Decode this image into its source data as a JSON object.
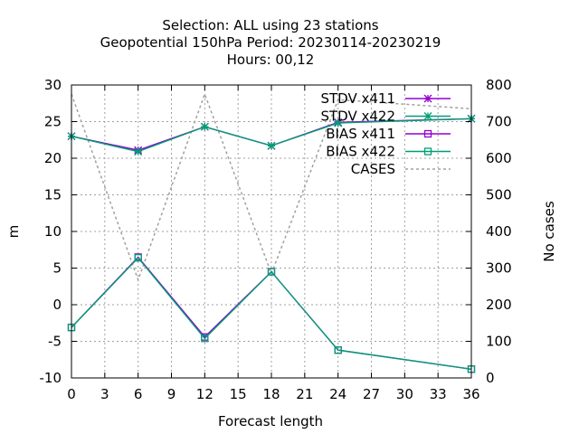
{
  "chart_data": {
    "type": "line",
    "title": [
      "Selection: ALL using    23 stations",
      "Geopotential 150hPa   Period: 20230114-20230219",
      "Hours:  00,12"
    ],
    "xlabel": "Forecast length",
    "ylabel": "m",
    "y2label": "No cases",
    "xlim": [
      0,
      36
    ],
    "ylim": [
      -10,
      30
    ],
    "y2lim": [
      0,
      800
    ],
    "xticks": [
      0,
      3,
      6,
      9,
      12,
      15,
      18,
      21,
      24,
      27,
      30,
      33,
      36
    ],
    "yticks": [
      -10,
      -5,
      0,
      5,
      10,
      15,
      20,
      25,
      30
    ],
    "y2ticks": [
      0,
      100,
      200,
      300,
      400,
      500,
      600,
      700,
      800
    ],
    "grid": true,
    "legend_position": "top-right",
    "series": [
      {
        "name": "STDV x411",
        "axis": "y",
        "color": "#9400d3",
        "marker": "star",
        "dash": false,
        "x": [
          0,
          6,
          12,
          18,
          24,
          36
        ],
        "values": [
          23.0,
          21.1,
          24.3,
          21.7,
          24.9,
          25.4
        ]
      },
      {
        "name": "STDV x422",
        "axis": "y",
        "color": "#009e73",
        "marker": "star",
        "dash": false,
        "x": [
          0,
          6,
          12,
          18,
          24,
          36
        ],
        "values": [
          23.0,
          20.9,
          24.3,
          21.7,
          24.8,
          25.4
        ]
      },
      {
        "name": "BIAS x411",
        "axis": "y",
        "color": "#9400d3",
        "marker": "square",
        "dash": false,
        "x": [
          0,
          6,
          12,
          18,
          24,
          36
        ],
        "values": [
          -3.1,
          6.5,
          -4.4,
          4.5,
          -6.2,
          -8.8
        ]
      },
      {
        "name": "BIAS x422",
        "axis": "y",
        "color": "#009e73",
        "marker": "square",
        "dash": false,
        "x": [
          0,
          6,
          12,
          18,
          24,
          36
        ],
        "values": [
          -3.1,
          6.4,
          -4.6,
          4.5,
          -6.2,
          -8.8
        ]
      },
      {
        "name": "CASES",
        "axis": "y2",
        "color": "#a0a0a0",
        "marker": "none",
        "dash": true,
        "x": [
          0,
          6,
          12,
          18,
          24,
          36
        ],
        "values": [
          775,
          268,
          775,
          285,
          760,
          735
        ]
      }
    ]
  }
}
